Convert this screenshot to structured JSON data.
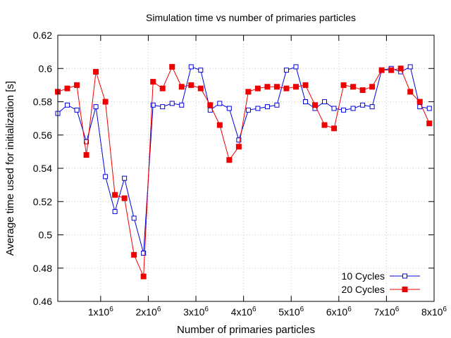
{
  "chart_data": {
    "type": "line",
    "title": "Simulation time vs number of primaries particles",
    "xlabel": "Number of primaries particles",
    "ylabel": "Average time used for initialization [s]",
    "xlim": [
      100000,
      8000000
    ],
    "ylim": [
      0.46,
      0.62
    ],
    "xticks": [
      {
        "value": 1000000,
        "base": "1x10",
        "exp": "6"
      },
      {
        "value": 2000000,
        "base": "2x10",
        "exp": "6"
      },
      {
        "value": 3000000,
        "base": "3x10",
        "exp": "6"
      },
      {
        "value": 4000000,
        "base": "4x10",
        "exp": "6"
      },
      {
        "value": 5000000,
        "base": "5x10",
        "exp": "6"
      },
      {
        "value": 6000000,
        "base": "6x10",
        "exp": "6"
      },
      {
        "value": 7000000,
        "base": "7x10",
        "exp": "6"
      },
      {
        "value": 8000000,
        "base": "8x10",
        "exp": "6"
      }
    ],
    "yticks": [
      {
        "value": 0.46,
        "label": "0.46"
      },
      {
        "value": 0.48,
        "label": "0.48"
      },
      {
        "value": 0.5,
        "label": "0.5"
      },
      {
        "value": 0.52,
        "label": "0.52"
      },
      {
        "value": 0.54,
        "label": "0.54"
      },
      {
        "value": 0.56,
        "label": "0.56"
      },
      {
        "value": 0.58,
        "label": "0.58"
      },
      {
        "value": 0.6,
        "label": "0.6"
      },
      {
        "value": 0.62,
        "label": "0.62"
      }
    ],
    "grid": true,
    "legend_position": "bottom-right",
    "x": [
      100000,
      300000,
      500000,
      700000,
      900000,
      1100000,
      1300000,
      1500000,
      1700000,
      1900000,
      2100000,
      2300000,
      2500000,
      2700000,
      2900000,
      3100000,
      3300000,
      3500000,
      3700000,
      3900000,
      4100000,
      4300000,
      4500000,
      4700000,
      4900000,
      5100000,
      5300000,
      5500000,
      5700000,
      5900000,
      6100000,
      6300000,
      6500000,
      6700000,
      6900000,
      7100000,
      7300000,
      7500000,
      7700000,
      7900000
    ],
    "series": [
      {
        "name": "10 Cycles",
        "color": "#0000dd",
        "marker": "open-square",
        "values": [
          0.573,
          0.578,
          0.575,
          0.556,
          0.577,
          0.535,
          0.514,
          0.534,
          0.51,
          0.489,
          0.578,
          0.577,
          0.579,
          0.578,
          0.601,
          0.599,
          0.575,
          0.579,
          0.576,
          0.557,
          0.575,
          0.576,
          0.577,
          0.578,
          0.599,
          0.601,
          0.58,
          0.576,
          0.58,
          0.576,
          0.575,
          0.576,
          0.578,
          0.577,
          0.599,
          0.6,
          0.598,
          0.601,
          0.577,
          0.576
        ]
      },
      {
        "name": "20 Cycles",
        "color": "#ee0000",
        "marker": "filled-square",
        "values": [
          0.586,
          0.588,
          0.59,
          0.548,
          0.598,
          0.58,
          0.524,
          0.522,
          0.488,
          0.475,
          0.592,
          0.588,
          0.601,
          0.589,
          0.59,
          0.588,
          0.578,
          0.566,
          0.545,
          0.553,
          0.586,
          0.588,
          0.589,
          0.589,
          0.588,
          0.589,
          0.59,
          0.578,
          0.566,
          0.564,
          0.59,
          0.589,
          0.587,
          0.589,
          0.599,
          0.599,
          0.6,
          0.586,
          0.58,
          0.567
        ]
      }
    ]
  }
}
